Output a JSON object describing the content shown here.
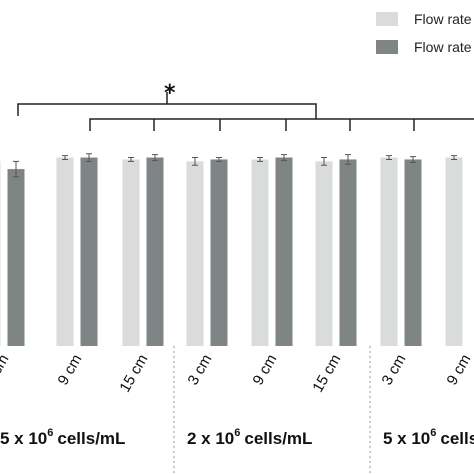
{
  "chart_data": {
    "type": "bar",
    "categories": [
      "cm",
      "9 cm",
      "15 cm",
      "3 cm",
      "9 cm",
      "15 cm",
      "3 cm",
      "9 cm"
    ],
    "groups": [
      "5 x 10",
      "2 x 10",
      "5 x 10"
    ],
    "group_exponent": "6",
    "group_unit": "cells/mL",
    "series": [
      {
        "name": "Flow rate",
        "color": "#dadbdb",
        "values": [
          96,
          98,
          97,
          96,
          97,
          96,
          98,
          98
        ],
        "errors": [
          1,
          1,
          1,
          2,
          1,
          2,
          1,
          1
        ]
      },
      {
        "name": "Flow rate",
        "color": "#7f8584",
        "values": [
          92,
          98,
          98,
          97,
          98,
          97,
          97,
          0
        ],
        "errors": [
          4,
          2,
          1.5,
          1,
          1.5,
          2.5,
          1.5,
          0
        ]
      }
    ],
    "significance": "*",
    "ylim": [
      0,
      130
    ],
    "grid": false,
    "legend_position": "top-right"
  }
}
